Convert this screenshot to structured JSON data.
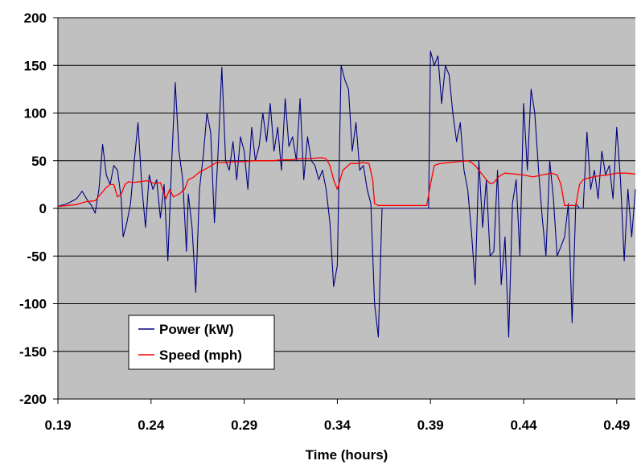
{
  "chart_data": {
    "type": "line",
    "title": "",
    "xlabel": "Time (hours)",
    "ylabel": "",
    "xlim": [
      0.19,
      0.5
    ],
    "ylim": [
      -200,
      200
    ],
    "x_ticks": [
      0.19,
      0.24,
      0.29,
      0.34,
      0.39,
      0.44,
      0.49
    ],
    "x_tick_labels": [
      "0.19",
      "0.24",
      "0.29",
      "0.34",
      "0.39",
      "0.44",
      "0.49"
    ],
    "y_ticks": [
      -200,
      -150,
      -100,
      -50,
      0,
      50,
      100,
      150,
      200
    ],
    "y_tick_labels": [
      "-200",
      "-150",
      "-100",
      "-50",
      "0",
      "50",
      "100",
      "150",
      "200"
    ],
    "grid": true,
    "legend_position": "bottom-left",
    "colors": {
      "plot_background": "#c0c0c0",
      "power": "#000080",
      "speed": "#ff0000"
    },
    "series": [
      {
        "name": "Power (kW)",
        "x": [
          0.19,
          0.195,
          0.2,
          0.203,
          0.206,
          0.208,
          0.21,
          0.212,
          0.214,
          0.216,
          0.218,
          0.22,
          0.222,
          0.224,
          0.225,
          0.227,
          0.229,
          0.231,
          0.233,
          0.235,
          0.237,
          0.239,
          0.241,
          0.243,
          0.245,
          0.247,
          0.249,
          0.251,
          0.253,
          0.255,
          0.257,
          0.259,
          0.26,
          0.262,
          0.264,
          0.266,
          0.268,
          0.27,
          0.272,
          0.274,
          0.276,
          0.278,
          0.28,
          0.282,
          0.284,
          0.286,
          0.288,
          0.29,
          0.292,
          0.294,
          0.296,
          0.298,
          0.3,
          0.302,
          0.304,
          0.306,
          0.308,
          0.31,
          0.312,
          0.314,
          0.316,
          0.318,
          0.32,
          0.322,
          0.324,
          0.326,
          0.328,
          0.33,
          0.332,
          0.334,
          0.336,
          0.338,
          0.34,
          0.342,
          0.344,
          0.346,
          0.348,
          0.35,
          0.352,
          0.354,
          0.356,
          0.358,
          0.36,
          0.362,
          0.364,
          0.37,
          0.38,
          0.388,
          0.389,
          0.39,
          0.392,
          0.394,
          0.396,
          0.398,
          0.4,
          0.402,
          0.404,
          0.406,
          0.408,
          0.41,
          0.412,
          0.414,
          0.416,
          0.418,
          0.42,
          0.422,
          0.424,
          0.426,
          0.428,
          0.43,
          0.432,
          0.434,
          0.436,
          0.438,
          0.44,
          0.442,
          0.444,
          0.446,
          0.448,
          0.45,
          0.452,
          0.454,
          0.456,
          0.458,
          0.46,
          0.462,
          0.464,
          0.466,
          0.468,
          0.47,
          0.472,
          0.474,
          0.476,
          0.478,
          0.48,
          0.482,
          0.484,
          0.486,
          0.488,
          0.49,
          0.492,
          0.494,
          0.496,
          0.498,
          0.5
        ],
        "values": [
          2,
          5,
          10,
          18,
          8,
          3,
          -5,
          20,
          67,
          35,
          25,
          45,
          40,
          10,
          -30,
          -15,
          5,
          50,
          90,
          25,
          -20,
          35,
          20,
          30,
          -10,
          25,
          -55,
          45,
          132,
          60,
          30,
          -45,
          15,
          -20,
          -88,
          20,
          55,
          100,
          80,
          -15,
          60,
          148,
          50,
          40,
          70,
          30,
          75,
          60,
          20,
          85,
          50,
          65,
          100,
          70,
          110,
          60,
          85,
          40,
          115,
          65,
          75,
          50,
          115,
          30,
          75,
          50,
          45,
          30,
          40,
          20,
          -15,
          -82,
          -60,
          150,
          135,
          125,
          60,
          90,
          40,
          45,
          20,
          5,
          -100,
          -135,
          0,
          0,
          0,
          0,
          0,
          165,
          150,
          160,
          110,
          150,
          140,
          100,
          70,
          90,
          40,
          20,
          -25,
          -80,
          50,
          -20,
          30,
          -50,
          -45,
          40,
          -80,
          -30,
          -135,
          5,
          30,
          -50,
          110,
          40,
          125,
          100,
          40,
          -10,
          -50,
          50,
          10,
          -50,
          -40,
          -30,
          5,
          -120,
          5,
          0,
          0,
          80,
          20,
          40,
          10,
          60,
          35,
          45,
          10,
          85,
          30,
          -55,
          20,
          -30,
          20
        ]
      },
      {
        "name": "Speed (mph)",
        "x": [
          0.19,
          0.2,
          0.205,
          0.21,
          0.213,
          0.216,
          0.218,
          0.22,
          0.222,
          0.224,
          0.226,
          0.228,
          0.23,
          0.234,
          0.238,
          0.242,
          0.245,
          0.248,
          0.25,
          0.252,
          0.255,
          0.258,
          0.26,
          0.263,
          0.266,
          0.27,
          0.275,
          0.28,
          0.285,
          0.29,
          0.295,
          0.3,
          0.305,
          0.31,
          0.315,
          0.32,
          0.325,
          0.33,
          0.332,
          0.334,
          0.336,
          0.338,
          0.34,
          0.343,
          0.347,
          0.35,
          0.354,
          0.357,
          0.359,
          0.36,
          0.362,
          0.365,
          0.375,
          0.385,
          0.388,
          0.39,
          0.392,
          0.395,
          0.4,
          0.405,
          0.41,
          0.412,
          0.414,
          0.416,
          0.418,
          0.42,
          0.422,
          0.424,
          0.426,
          0.428,
          0.43,
          0.435,
          0.44,
          0.445,
          0.45,
          0.455,
          0.458,
          0.46,
          0.462,
          0.468,
          0.47,
          0.472,
          0.475,
          0.48,
          0.485,
          0.49,
          0.495,
          0.5
        ],
        "values": [
          2,
          4,
          7,
          8,
          15,
          22,
          25,
          25,
          12,
          15,
          25,
          28,
          27,
          28,
          29,
          26,
          27,
          10,
          20,
          12,
          15,
          20,
          30,
          33,
          38,
          42,
          48,
          48,
          49,
          49,
          50,
          50,
          50,
          51,
          51,
          52,
          52,
          53,
          53,
          52,
          45,
          30,
          20,
          40,
          47,
          47,
          48,
          47,
          30,
          5,
          3,
          3,
          3,
          3,
          3,
          25,
          45,
          47,
          48,
          49,
          50,
          48,
          45,
          40,
          35,
          30,
          26,
          27,
          32,
          35,
          37,
          36,
          35,
          33,
          35,
          37,
          35,
          25,
          3,
          3,
          25,
          30,
          32,
          34,
          35,
          37,
          37,
          36
        ]
      }
    ]
  }
}
